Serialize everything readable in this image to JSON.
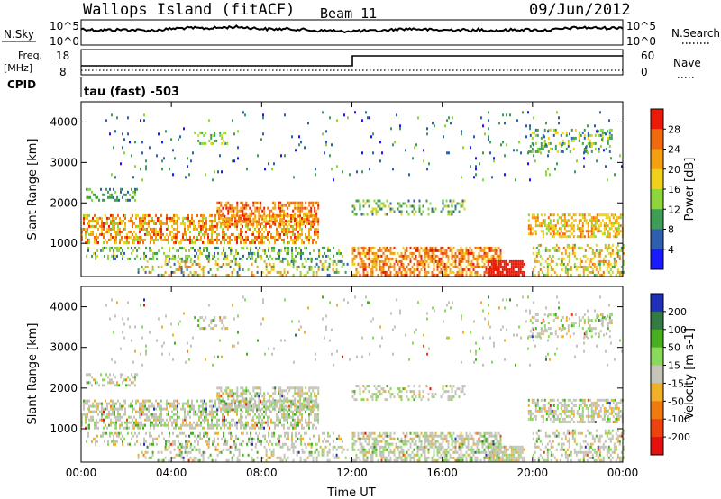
{
  "header": {
    "station": "Wallops Island (fitACF)",
    "beam": "Beam 11",
    "date": "09/Jun/2012"
  },
  "aux_panel": {
    "nsky_label": "N.Sky",
    "nsky_top": "10^5",
    "nsky_bottom": "10^0",
    "nsearch_label": "N.Search",
    "nsearch_top": "10^5",
    "nsearch_bottom": "10^0",
    "freq_label": "Freq.",
    "freq_unit": "[MHz]",
    "freq_top": "18",
    "freq_bottom": "8",
    "nave_label": "Nave",
    "nave_top": "60",
    "nave_bottom": "0",
    "cpid_label": "CPID",
    "cpid_value": "tau (fast) -503"
  },
  "colors": {
    "power_scale": [
      "#1a1aff",
      "#2f5fb0",
      "#3f9e55",
      "#8fd63a",
      "#f0d01a",
      "#f5a011",
      "#f26a0e",
      "#ee1a08"
    ],
    "velocity_scale": [
      "#2030b8",
      "#357a45",
      "#48b020",
      "#8bd95a",
      "#c4c4b8",
      "#f2b02a",
      "#f07a10",
      "#ee4210",
      "#e51010"
    ]
  },
  "chart_data": [
    {
      "type": "heatmap",
      "name": "power",
      "ylabel": "Slant Range [km]",
      "xlabel": "",
      "x_ticks": [
        "00:00",
        "04:00",
        "08:00",
        "12:00",
        "16:00",
        "20:00",
        "00:00"
      ],
      "xlim_hours": [
        0,
        24
      ],
      "y_ticks": [
        1000,
        2000,
        3000,
        4000
      ],
      "ylim_km": [
        180,
        4500
      ],
      "colorbar": {
        "label": "Power [dB]",
        "ticks": [
          4,
          8,
          12,
          16,
          20,
          24,
          28
        ],
        "range": [
          0,
          32
        ]
      }
    },
    {
      "type": "heatmap",
      "name": "velocity",
      "ylabel": "Slant Range [km]",
      "xlabel": "Time UT",
      "x_ticks": [
        "00:00",
        "04:00",
        "08:00",
        "12:00",
        "16:00",
        "20:00",
        "00:00"
      ],
      "xlim_hours": [
        0,
        24
      ],
      "y_ticks": [
        1000,
        2000,
        3000,
        4000
      ],
      "ylim_km": [
        180,
        4500
      ],
      "colorbar": {
        "label": "Velocity [m s-1]",
        "ticks": [
          200,
          100,
          50,
          15,
          -15,
          -50,
          -100,
          -200
        ]
      }
    }
  ]
}
